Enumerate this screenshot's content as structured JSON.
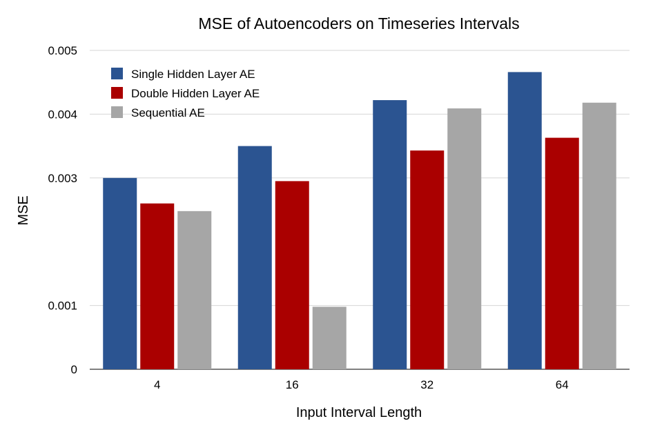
{
  "chart_data": {
    "type": "bar",
    "title": "MSE of Autoencoders on Timeseries Intervals",
    "xlabel": "Input Interval Length",
    "ylabel": "MSE",
    "categories": [
      "4",
      "16",
      "32",
      "64"
    ],
    "ylim": [
      0,
      0.005
    ],
    "yticks": [
      "0",
      "0.001",
      "0.003",
      "0.004",
      "0.005"
    ],
    "grid": true,
    "legend_position": "top-left",
    "series": [
      {
        "name": "Single Hidden Layer AE",
        "color": "#2B5491",
        "values": [
          0.003,
          0.0035,
          0.00422,
          0.00466
        ]
      },
      {
        "name": "Double Hidden Layer AE",
        "color": "#AA0000",
        "values": [
          0.0026,
          0.00295,
          0.00343,
          0.00363
        ]
      },
      {
        "name": "Sequential AE",
        "color": "#A6A6A6",
        "values": [
          0.00248,
          0.00098,
          0.00409,
          0.00418
        ]
      }
    ]
  }
}
